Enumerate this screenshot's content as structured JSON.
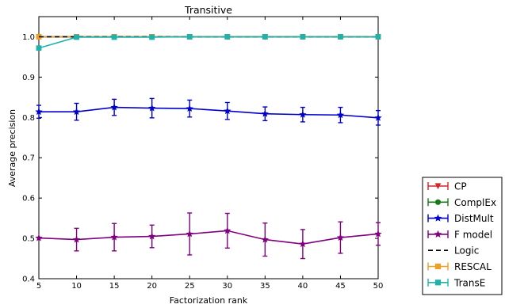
{
  "chart_data": {
    "type": "line",
    "title": "Transitive",
    "xlabel": "Factorization rank",
    "ylabel": "Average precision",
    "x": [
      5,
      10,
      15,
      20,
      25,
      30,
      35,
      40,
      45,
      50
    ],
    "x_ticks": [
      "5",
      "10",
      "15",
      "20",
      "25",
      "30",
      "35",
      "40",
      "45",
      "50"
    ],
    "y_ticks": [
      "0.4",
      "0.5",
      "0.6",
      "0.7",
      "0.8",
      "0.9",
      "1.0"
    ],
    "xlim": [
      5,
      50
    ],
    "ylim": [
      0.4,
      1.05
    ],
    "grid": false,
    "legend_position": "outside-right",
    "series": [
      {
        "name": "CP",
        "color": "#d62728",
        "marker": "triangle-down",
        "linestyle": "solid",
        "values": [
          1.0,
          1.0,
          1.0,
          1.0,
          1.0,
          1.0,
          1.0,
          1.0,
          1.0,
          1.0
        ],
        "errors": [
          0,
          0,
          0,
          0,
          0,
          0,
          0,
          0,
          0,
          0
        ]
      },
      {
        "name": "ComplEx",
        "color": "#1a7a1a",
        "marker": "circle",
        "linestyle": "solid",
        "values": [
          1.0,
          1.0,
          1.0,
          1.0,
          1.0,
          1.0,
          1.0,
          1.0,
          1.0,
          1.0
        ],
        "errors": [
          0,
          0,
          0,
          0,
          0,
          0,
          0,
          0,
          0,
          0
        ]
      },
      {
        "name": "DistMult",
        "color": "#0000cc",
        "marker": "star",
        "linestyle": "solid",
        "values": [
          0.814,
          0.814,
          0.825,
          0.823,
          0.822,
          0.816,
          0.809,
          0.807,
          0.806,
          0.799
        ],
        "errors": [
          0.016,
          0.021,
          0.02,
          0.024,
          0.021,
          0.021,
          0.017,
          0.018,
          0.019,
          0.018
        ]
      },
      {
        "name": "F model",
        "color": "#800080",
        "marker": "star",
        "linestyle": "solid",
        "values": [
          0.501,
          0.497,
          0.503,
          0.505,
          0.511,
          0.519,
          0.497,
          0.486,
          0.502,
          0.511
        ],
        "errors": [
          0.0,
          0.028,
          0.034,
          0.028,
          0.052,
          0.043,
          0.041,
          0.036,
          0.039,
          0.028
        ]
      },
      {
        "name": "Logic",
        "color": "#000000",
        "marker": "none",
        "linestyle": "dashed",
        "values": [
          1.0,
          1.0,
          1.0,
          1.0,
          1.0,
          1.0,
          1.0,
          1.0,
          1.0,
          1.0
        ],
        "errors": [
          0,
          0,
          0,
          0,
          0,
          0,
          0,
          0,
          0,
          0
        ]
      },
      {
        "name": "RESCAL",
        "color": "#f0a020",
        "marker": "square",
        "linestyle": "solid",
        "values": [
          1.0,
          1.0,
          1.0,
          1.0,
          1.0,
          1.0,
          1.0,
          1.0,
          1.0,
          1.0
        ],
        "errors": [
          0,
          0,
          0,
          0,
          0,
          0,
          0,
          0,
          0,
          0
        ]
      },
      {
        "name": "TransE",
        "color": "#20b2aa",
        "marker": "square",
        "linestyle": "solid",
        "values": [
          0.972,
          0.999,
          0.999,
          0.999,
          1.0,
          1.0,
          1.0,
          1.0,
          1.0,
          1.0
        ],
        "errors": [
          0,
          0,
          0,
          0,
          0,
          0,
          0,
          0,
          0,
          0
        ]
      }
    ]
  }
}
